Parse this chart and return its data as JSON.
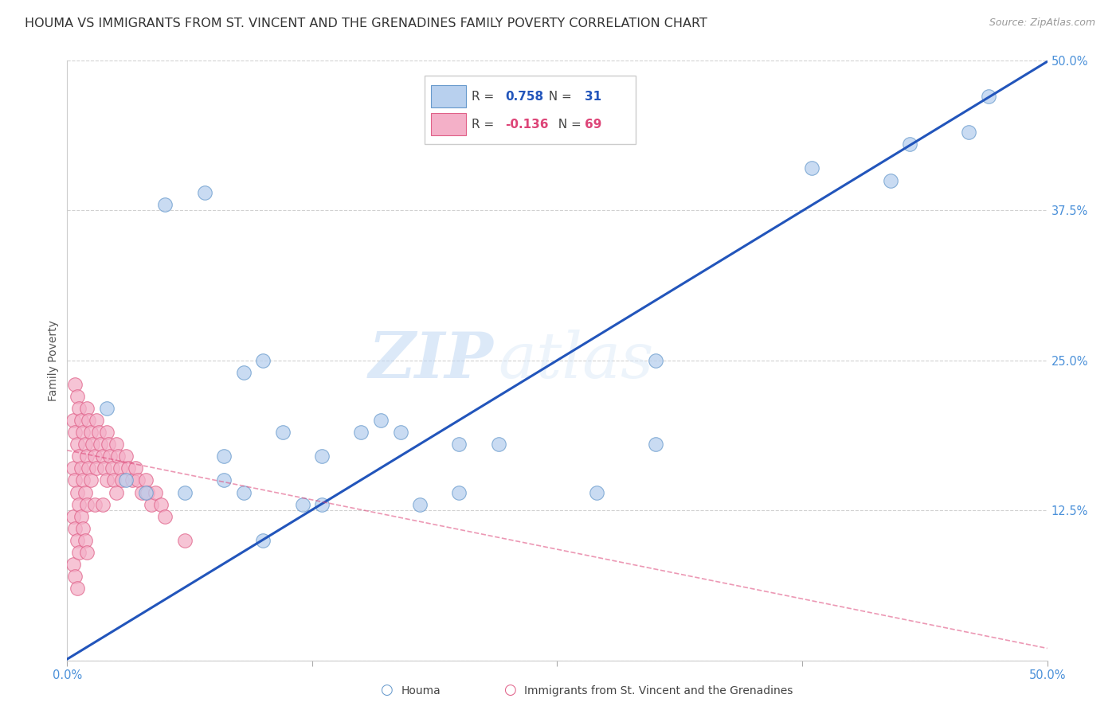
{
  "title": "HOUMA VS IMMIGRANTS FROM ST. VINCENT AND THE GRENADINES FAMILY POVERTY CORRELATION CHART",
  "source": "Source: ZipAtlas.com",
  "tick_color": "#4a90d9",
  "ylabel": "Family Poverty",
  "xlim": [
    0.0,
    0.5
  ],
  "ylim": [
    0.0,
    0.5
  ],
  "houma_color": "#b8d0ee",
  "houma_edge_color": "#6699cc",
  "immigrants_color": "#f4b0c8",
  "immigrants_edge_color": "#e06088",
  "houma_R": 0.758,
  "houma_N": 31,
  "immigrants_R": -0.136,
  "immigrants_N": 69,
  "houma_line_color": "#2255bb",
  "immigrants_line_color": "#dd4477",
  "watermark_zip": "ZIP",
  "watermark_atlas": "atlas",
  "background_color": "#ffffff",
  "grid_color": "#cccccc",
  "title_fontsize": 11.5,
  "label_fontsize": 10,
  "tick_fontsize": 10.5,
  "houma_x": [
    0.02,
    0.05,
    0.07,
    0.09,
    0.1,
    0.11,
    0.13,
    0.15,
    0.17,
    0.2,
    0.22,
    0.3,
    0.38,
    0.43,
    0.46,
    0.03,
    0.04,
    0.06,
    0.08,
    0.08,
    0.09,
    0.1,
    0.12,
    0.13,
    0.16,
    0.18,
    0.2,
    0.27,
    0.3,
    0.42,
    0.47
  ],
  "houma_y": [
    0.21,
    0.38,
    0.39,
    0.24,
    0.25,
    0.19,
    0.17,
    0.19,
    0.19,
    0.18,
    0.18,
    0.25,
    0.41,
    0.43,
    0.44,
    0.15,
    0.14,
    0.14,
    0.15,
    0.17,
    0.14,
    0.1,
    0.13,
    0.13,
    0.2,
    0.13,
    0.14,
    0.14,
    0.18,
    0.4,
    0.47
  ],
  "immigrants_x": [
    0.003,
    0.003,
    0.003,
    0.003,
    0.004,
    0.004,
    0.004,
    0.004,
    0.004,
    0.005,
    0.005,
    0.005,
    0.005,
    0.005,
    0.006,
    0.006,
    0.006,
    0.006,
    0.007,
    0.007,
    0.007,
    0.008,
    0.008,
    0.008,
    0.009,
    0.009,
    0.009,
    0.01,
    0.01,
    0.01,
    0.01,
    0.011,
    0.011,
    0.012,
    0.012,
    0.013,
    0.014,
    0.014,
    0.015,
    0.015,
    0.016,
    0.017,
    0.018,
    0.018,
    0.019,
    0.02,
    0.02,
    0.021,
    0.022,
    0.023,
    0.024,
    0.025,
    0.025,
    0.026,
    0.027,
    0.028,
    0.03,
    0.031,
    0.033,
    0.035,
    0.036,
    0.038,
    0.04,
    0.041,
    0.043,
    0.045,
    0.048,
    0.05,
    0.06
  ],
  "immigrants_y": [
    0.2,
    0.16,
    0.12,
    0.08,
    0.23,
    0.19,
    0.15,
    0.11,
    0.07,
    0.22,
    0.18,
    0.14,
    0.1,
    0.06,
    0.21,
    0.17,
    0.13,
    0.09,
    0.2,
    0.16,
    0.12,
    0.19,
    0.15,
    0.11,
    0.18,
    0.14,
    0.1,
    0.21,
    0.17,
    0.13,
    0.09,
    0.2,
    0.16,
    0.19,
    0.15,
    0.18,
    0.17,
    0.13,
    0.2,
    0.16,
    0.19,
    0.18,
    0.17,
    0.13,
    0.16,
    0.19,
    0.15,
    0.18,
    0.17,
    0.16,
    0.15,
    0.18,
    0.14,
    0.17,
    0.16,
    0.15,
    0.17,
    0.16,
    0.15,
    0.16,
    0.15,
    0.14,
    0.15,
    0.14,
    0.13,
    0.14,
    0.13,
    0.12,
    0.1
  ],
  "houma_line_x0": 0.0,
  "houma_line_y0": 0.001,
  "houma_line_x1": 0.5,
  "houma_line_y1": 0.499,
  "imm_line_x0": 0.0,
  "imm_line_y0": 0.175,
  "imm_line_x1": 0.5,
  "imm_line_y1": 0.01
}
